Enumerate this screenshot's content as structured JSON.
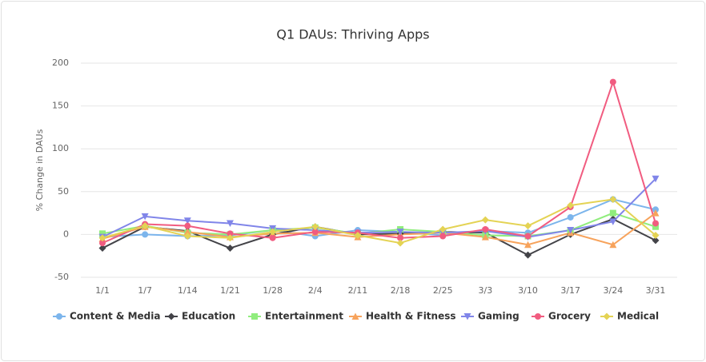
{
  "chart_data": {
    "type": "line",
    "title": "Q1 DAUs: Thriving Apps",
    "y_label": "% Change in DAUs",
    "categories": [
      "1/1",
      "1/7",
      "1/14",
      "1/21",
      "1/28",
      "2/4",
      "2/11",
      "2/18",
      "2/25",
      "3/3",
      "3/10",
      "3/17",
      "3/24",
      "3/31"
    ],
    "ylim": [
      -50,
      200
    ],
    "yticks": [
      -50,
      0,
      50,
      100,
      150,
      200
    ],
    "grid": true,
    "legend": "bottom",
    "series": [
      {
        "name": "Content & Media",
        "color": "#7cb5ec",
        "marker": "circle",
        "values": [
          -3,
          0,
          -2,
          -1,
          5,
          -2,
          5,
          3,
          -1,
          4,
          2,
          20,
          41,
          29
        ]
      },
      {
        "name": "Education",
        "color": "#434348",
        "marker": "diamond",
        "values": [
          -16,
          9,
          4,
          -16,
          0,
          9,
          0,
          1,
          3,
          2,
          -24,
          0,
          18,
          -7
        ]
      },
      {
        "name": "Entertainment",
        "color": "#90ed7d",
        "marker": "square",
        "values": [
          1,
          10,
          2,
          0,
          5,
          8,
          1,
          6,
          3,
          -1,
          -2,
          5,
          25,
          9
        ]
      },
      {
        "name": "Health & Fitness",
        "color": "#f7a35c",
        "marker": "triangle",
        "values": [
          -5,
          9,
          3,
          -3,
          1,
          2,
          -3,
          0,
          2,
          -3,
          -12,
          2,
          -12,
          25
        ]
      },
      {
        "name": "Gaming",
        "color": "#8085e9",
        "marker": "triangle-down",
        "values": [
          -3,
          21,
          16,
          13,
          7,
          5,
          2,
          3,
          2,
          4,
          -3,
          5,
          15,
          65
        ]
      },
      {
        "name": "Grocery",
        "color": "#f15c80",
        "marker": "circle",
        "values": [
          -10,
          12,
          10,
          1,
          -4,
          3,
          2,
          -4,
          -2,
          6,
          -2,
          32,
          178,
          13
        ]
      },
      {
        "name": "Medical",
        "color": "#e4d354",
        "marker": "diamond",
        "values": [
          -4,
          10,
          -2,
          -4,
          3,
          9,
          -1,
          -10,
          6,
          17,
          10,
          34,
          41,
          -1
        ]
      }
    ]
  }
}
